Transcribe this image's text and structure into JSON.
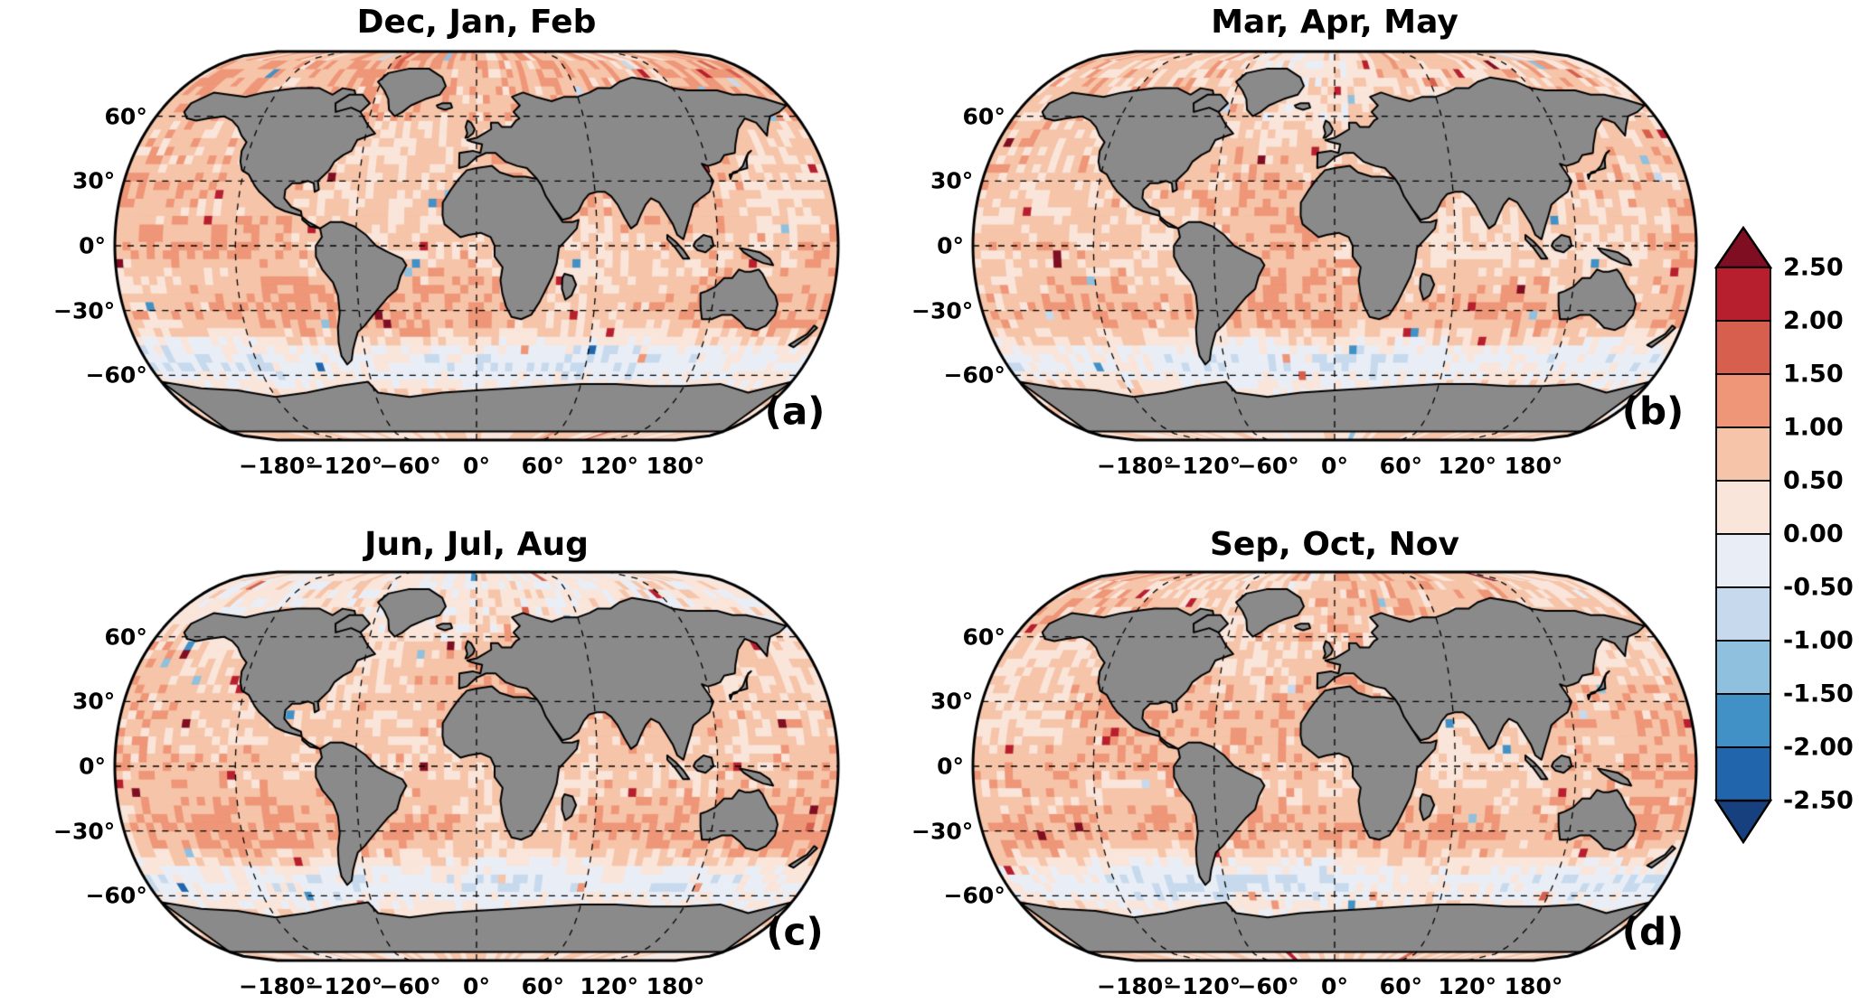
{
  "figure": {
    "background": "#ffffff",
    "panels": [
      {
        "title": "Dec, Jan, Feb",
        "letter": "(a)"
      },
      {
        "title": "Mar, Apr, May",
        "letter": "(b)"
      },
      {
        "title": "Jun, Jul, Aug",
        "letter": "(c)"
      },
      {
        "title": "Sep, Oct, Nov",
        "letter": "(d)"
      }
    ],
    "lat_labels": [
      "60°",
      "30°",
      "0°",
      "−30°",
      "−60°"
    ],
    "lon_labels": [
      "−180°",
      "−120°",
      "−60°",
      "0°",
      "60°",
      "120°",
      "180°"
    ]
  },
  "chart_data": {
    "type": "heatmap",
    "projection": "robinson-like global map, 2x2 seasonal panels with shared colorbar",
    "panels": [
      {
        "label": "(a)",
        "title": "Dec, Jan, Feb"
      },
      {
        "label": "(b)",
        "title": "Mar, Apr, May"
      },
      {
        "label": "(c)",
        "title": "Jun, Jul, Aug"
      },
      {
        "label": "(d)",
        "title": "Sep, Oct, Nov"
      }
    ],
    "lat_ticks": [
      60,
      30,
      0,
      -30,
      -60
    ],
    "lon_ticks": [
      -180,
      -120,
      -60,
      0,
      60,
      120,
      180
    ],
    "value_range": [
      -2.5,
      2.5
    ],
    "colorbar": {
      "tick_labels": [
        "2.50",
        "2.00",
        "1.50",
        "1.00",
        "0.50",
        "0.00",
        "-0.50",
        "-1.00",
        "-1.50",
        "-2.00",
        "-2.50"
      ],
      "levels": [
        -2.5,
        -2.0,
        -1.5,
        -1.0,
        -0.5,
        0.0,
        0.5,
        1.0,
        1.5,
        2.0,
        2.5
      ],
      "segment_colors_top_to_bottom": [
        "#b81f2e",
        "#d6604d",
        "#ee9677",
        "#f6c4a8",
        "#fae5da",
        "#e9eef6",
        "#c6d9ed",
        "#8fc0dd",
        "#4191c6",
        "#2166ac"
      ],
      "over_arrow_color": "#7f0e23",
      "under_arrow_color": "#17407f"
    },
    "land_color": "#8a8a8a",
    "pattern_summary": "Gridded ocean anomaly cells, predominantly +0.0 to +1.5 (pale pink to red) with strongest warm band near 30S, a weak negative (light blue) band near 50-60S, scattered deep-red and blue speckles; continents masked gray with black coastlines; dashed graticule every 30 deg lat / 60 deg lon."
  }
}
